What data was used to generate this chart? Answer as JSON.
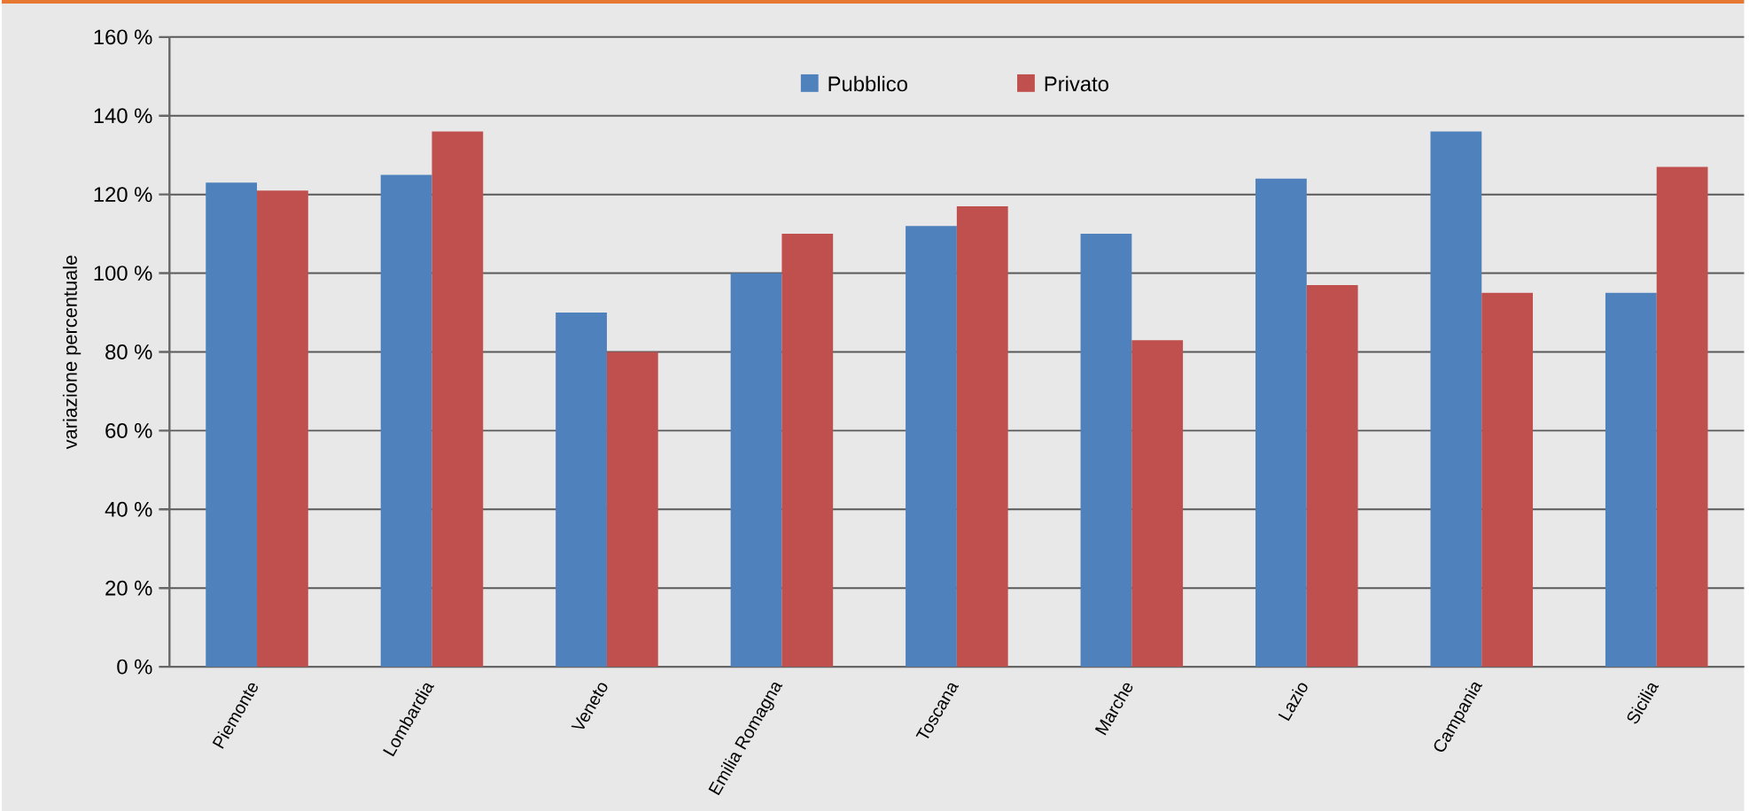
{
  "chart_data": {
    "type": "bar",
    "ylabel": "variazione percentuale",
    "categories": [
      "Piemonte",
      "Lombardia",
      "Veneto",
      "Emilia Romagna",
      "Toscana",
      "Marche",
      "Lazio",
      "Campania",
      "Sicilia"
    ],
    "series": [
      {
        "name": "Pubblico",
        "color": "#4f81bd",
        "values": [
          123,
          125,
          90,
          100,
          112,
          110,
          124,
          136,
          95
        ]
      },
      {
        "name": "Privato",
        "color": "#c0504d",
        "values": [
          121,
          136,
          80,
          110,
          117,
          83,
          97,
          95,
          127
        ]
      }
    ],
    "ylim": [
      0,
      160
    ],
    "yticks": [
      {
        "value": 0,
        "label": "0 %"
      },
      {
        "value": 20,
        "label": "20 %"
      },
      {
        "value": 40,
        "label": "40 %"
      },
      {
        "value": 60,
        "label": "60 %"
      },
      {
        "value": 80,
        "label": "80 %"
      },
      {
        "value": 100,
        "label": "100 %"
      },
      {
        "value": 120,
        "label": "120 %"
      },
      {
        "value": 140,
        "label": "140 %"
      },
      {
        "value": 160,
        "label": "160 %"
      }
    ],
    "grid": "y",
    "legend": "top"
  }
}
